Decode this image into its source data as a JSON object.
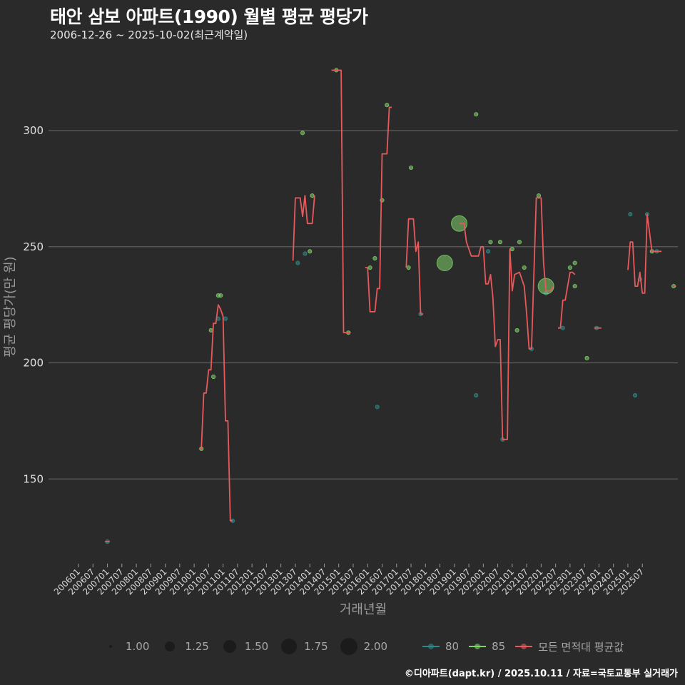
{
  "header": {
    "title": "태안 삼보 아파트(1990) 월별 평균 평당가",
    "subtitle": "2006-12-26 ~ 2025-10-02(최근계약일)"
  },
  "footer": {
    "credit": "©디아파트(dapt.kr) / 2025.10.11 / 자료=국토교통부 실거래가"
  },
  "colors": {
    "background": "#2a2a2a",
    "grid": "#5e5e5e",
    "series_80": "#2e8b8b",
    "series_85": "#7fd36b",
    "series_avg": "#e8595c"
  },
  "legend": {
    "size_title": "",
    "sizes": [
      {
        "label": "1.00",
        "r": 2
      },
      {
        "label": "1.25",
        "r": 7
      },
      {
        "label": "1.50",
        "r": 9
      },
      {
        "label": "1.75",
        "r": 11
      },
      {
        "label": "2.00",
        "r": 12
      }
    ],
    "series": [
      {
        "label": "80",
        "color": "#2e8b8b"
      },
      {
        "label": "85",
        "color": "#7fd36b"
      },
      {
        "label": "모든 면적대 평균값",
        "color": "#e8595c"
      }
    ]
  },
  "chart_data": {
    "type": "line",
    "title": "태안 삼보 아파트(1990) 월별 평균 평당가",
    "subtitle": "2006-12-26 ~ 2025-10-02(최근계약일)",
    "xlabel": "거래년월",
    "ylabel": "평균 평당가(만 원)",
    "ylim": [
      112,
      332
    ],
    "yticks": [
      150,
      200,
      250,
      300
    ],
    "xticks": [
      "200601",
      "200607",
      "200701",
      "200707",
      "200801",
      "200807",
      "200901",
      "200907",
      "201001",
      "201007",
      "201101",
      "201107",
      "201201",
      "201207",
      "201301",
      "201307",
      "201401",
      "201407",
      "201501",
      "201507",
      "201601",
      "201607",
      "201701",
      "201707",
      "201801",
      "201807",
      "201901",
      "201907",
      "202001",
      "202007",
      "202101",
      "202107",
      "202201",
      "202207",
      "202301",
      "202307",
      "202401",
      "202407",
      "202501",
      "202507"
    ],
    "grid": true,
    "legend_position": "bottom",
    "series": [
      {
        "name": "모든 면적대 평균값",
        "segments": [
          [
            [
              11,
              123
            ],
            [
              13,
              123
            ]
          ],
          [
            [
              50,
              163
            ],
            [
              51,
              163
            ],
            [
              52,
              187
            ],
            [
              53,
              187
            ],
            [
              54,
              197
            ],
            [
              55,
              197
            ],
            [
              56,
              217
            ],
            [
              57,
              217
            ],
            [
              58,
              225
            ],
            [
              59,
              223
            ],
            [
              60,
              220
            ],
            [
              61,
              175
            ],
            [
              62,
              175
            ],
            [
              63,
              132
            ],
            [
              64,
              132
            ]
          ],
          [
            [
              89,
              244
            ],
            [
              90,
              271
            ],
            [
              92,
              271
            ],
            [
              93,
              263
            ],
            [
              94,
              272
            ],
            [
              95,
              260
            ],
            [
              97,
              260
            ],
            [
              98,
              272
            ]
          ],
          [
            [
              105,
              326
            ],
            [
              109,
              326
            ],
            [
              110,
              213
            ],
            [
              113,
              213
            ]
          ],
          [
            [
              119,
              241
            ],
            [
              120,
              241
            ],
            [
              121,
              222
            ],
            [
              123,
              222
            ],
            [
              124,
              232
            ],
            [
              125,
              232
            ],
            [
              126,
              290
            ],
            [
              128,
              290
            ],
            [
              129,
              310
            ],
            [
              130,
              310
            ]
          ],
          [
            [
              136,
              241
            ],
            [
              137,
              262
            ],
            [
              139,
              262
            ],
            [
              140,
              248
            ],
            [
              141,
              252
            ],
            [
              142,
              221
            ],
            [
              143,
              221
            ]
          ],
          [
            [
              158,
              260
            ],
            [
              160,
              260
            ],
            [
              161,
              252
            ],
            [
              162,
              249
            ],
            [
              163,
              246
            ],
            [
              166,
              246
            ],
            [
              167,
              250
            ],
            [
              168,
              250
            ],
            [
              169,
              234
            ],
            [
              170,
              234
            ],
            [
              171,
              238
            ],
            [
              172,
              228
            ],
            [
              173,
              207
            ],
            [
              174,
              210
            ],
            [
              175,
              210
            ],
            [
              176,
              167
            ],
            [
              178,
              167
            ],
            [
              179,
              249
            ],
            [
              180,
              231
            ],
            [
              181,
              238
            ],
            [
              183,
              239
            ],
            [
              184,
              236
            ],
            [
              185,
              233
            ],
            [
              186,
              221
            ],
            [
              187,
              206
            ],
            [
              188,
              206
            ],
            [
              190,
              271
            ],
            [
              192,
              271
            ],
            [
              193,
              243
            ],
            [
              194,
              231
            ],
            [
              196,
              231
            ],
            [
              197,
              233
            ]
          ],
          [
            [
              199,
              215
            ],
            [
              200,
              215
            ],
            [
              201,
              227
            ],
            [
              202,
              227
            ],
            [
              203,
              233
            ],
            [
              204,
              239
            ],
            [
              205,
              239
            ],
            [
              206,
              238
            ]
          ],
          [
            [
              214,
              215
            ],
            [
              217,
              215
            ]
          ],
          [
            [
              228,
              240
            ],
            [
              229,
              252
            ],
            [
              230,
              252
            ],
            [
              231,
              233
            ],
            [
              232,
              233
            ],
            [
              233,
              239
            ],
            [
              234,
              230
            ],
            [
              235,
              230
            ],
            [
              236,
              264
            ],
            [
              238,
              248
            ],
            [
              242,
              248
            ]
          ],
          [
            [
              247,
              233
            ],
            [
              248,
              233
            ]
          ]
        ]
      },
      {
        "name": "85",
        "points": [
          [
            51,
            163,
            1
          ],
          [
            55,
            214,
            1
          ],
          [
            56,
            194,
            1
          ],
          [
            58,
            229,
            1
          ],
          [
            59,
            229,
            1
          ],
          [
            93,
            299,
            1
          ],
          [
            96,
            248,
            1
          ],
          [
            97,
            272,
            1
          ],
          [
            107,
            326,
            1
          ],
          [
            112,
            213,
            1
          ],
          [
            121,
            241,
            1
          ],
          [
            123,
            245,
            1
          ],
          [
            126,
            270,
            1
          ],
          [
            128,
            311,
            1
          ],
          [
            137,
            241,
            1
          ],
          [
            138,
            284,
            1
          ],
          [
            152,
            243,
            1.8
          ],
          [
            158,
            260,
            1.8
          ],
          [
            165,
            307,
            1
          ],
          [
            171,
            252,
            1
          ],
          [
            175,
            252,
            1
          ],
          [
            180,
            249,
            1
          ],
          [
            182,
            214,
            1
          ],
          [
            183,
            252,
            1
          ],
          [
            185,
            241,
            1
          ],
          [
            191,
            272,
            1
          ],
          [
            194,
            233,
            1.8
          ],
          [
            204,
            241,
            1
          ],
          [
            206,
            243,
            1
          ],
          [
            206,
            233,
            1
          ],
          [
            211,
            202,
            1
          ],
          [
            238,
            248,
            1
          ],
          [
            247,
            233,
            1
          ]
        ]
      },
      {
        "name": "80",
        "points": [
          [
            12,
            123,
            1
          ],
          [
            58,
            219,
            1
          ],
          [
            61,
            219,
            1
          ],
          [
            64,
            132,
            1
          ],
          [
            91,
            243,
            1
          ],
          [
            94,
            247,
            1
          ],
          [
            124,
            181,
            1
          ],
          [
            142,
            221,
            1
          ],
          [
            165,
            186,
            1
          ],
          [
            170,
            248,
            1
          ],
          [
            176,
            167,
            1
          ],
          [
            188,
            206,
            1
          ],
          [
            194,
            230,
            1
          ],
          [
            201,
            215,
            1
          ],
          [
            215,
            215,
            1
          ],
          [
            229,
            264,
            1
          ],
          [
            231,
            186,
            1
          ],
          [
            236,
            264,
            1
          ],
          [
            240,
            248,
            1
          ],
          [
            233,
            236,
            1
          ]
        ]
      }
    ]
  }
}
